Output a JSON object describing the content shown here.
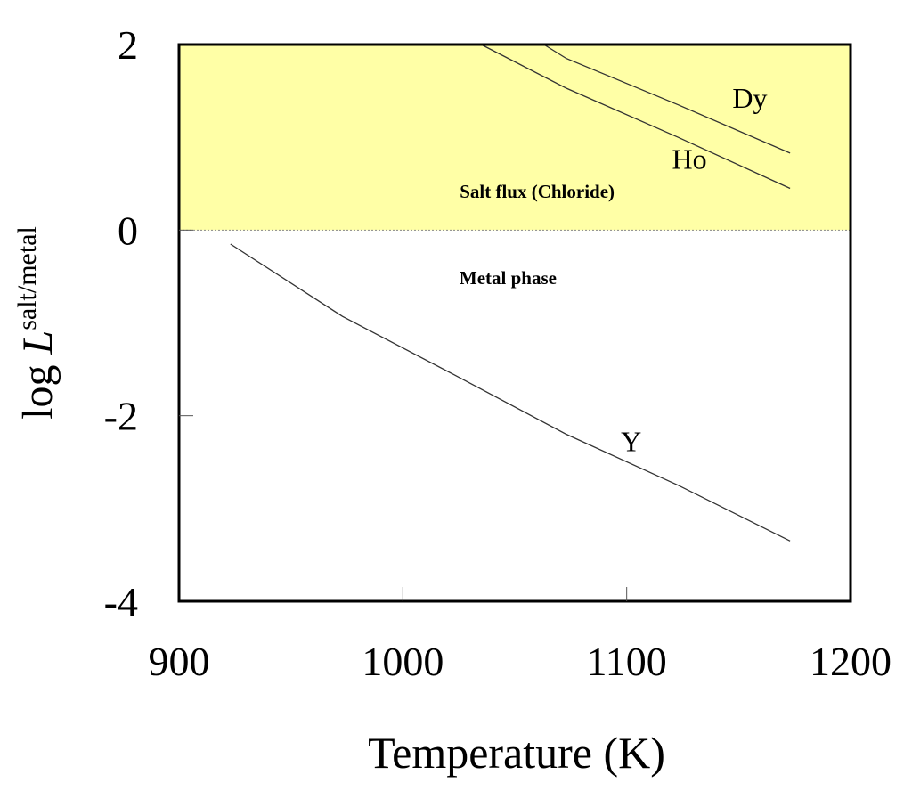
{
  "chart_data": {
    "type": "line",
    "title": "",
    "xlabel": "Temperature (K)",
    "ylabel": {
      "prefix": "log ",
      "symbol": "L",
      "superscript": "salt/metal"
    },
    "xlim": [
      900,
      1200
    ],
    "ylim": [
      -4,
      2
    ],
    "xticks": [
      900,
      1000,
      1100,
      1200
    ],
    "xtick_labels": [
      "900",
      "1000",
      "1100",
      "1200"
    ],
    "yticks": [
      2,
      0,
      -2,
      -4
    ],
    "ytick_labels": [
      "2",
      "0",
      "-2",
      "-4"
    ],
    "grid": false,
    "legend": "none",
    "regions": [
      {
        "label": "Salt flux (Chloride)",
        "y_from": 0,
        "y_to": 2,
        "color": "#FFFFA6"
      },
      {
        "label": "Metal phase",
        "y_from": -4,
        "y_to": 0,
        "color": "#FFFFFF"
      }
    ],
    "reference_lines": [
      {
        "y": 0,
        "style": "dotted",
        "color": "#888888"
      }
    ],
    "series": [
      {
        "name": "Dy",
        "color": "#333333",
        "x": [
          1063,
          1073,
          1123,
          1173
        ],
        "y": [
          2.0,
          1.85,
          1.35,
          0.83
        ]
      },
      {
        "name": "Ho",
        "color": "#333333",
        "x": [
          1035,
          1073,
          1123,
          1173
        ],
        "y": [
          2.0,
          1.53,
          1.0,
          0.45
        ]
      },
      {
        "name": "Y",
        "color": "#333333",
        "x": [
          923,
          973,
          1023,
          1073,
          1123,
          1173
        ],
        "y": [
          -0.15,
          -0.93,
          -1.56,
          -2.2,
          -2.75,
          -3.35
        ]
      }
    ],
    "colors": {
      "salt_region": "#FFFFA6",
      "frame": "#000000",
      "lines": "#333333"
    }
  }
}
